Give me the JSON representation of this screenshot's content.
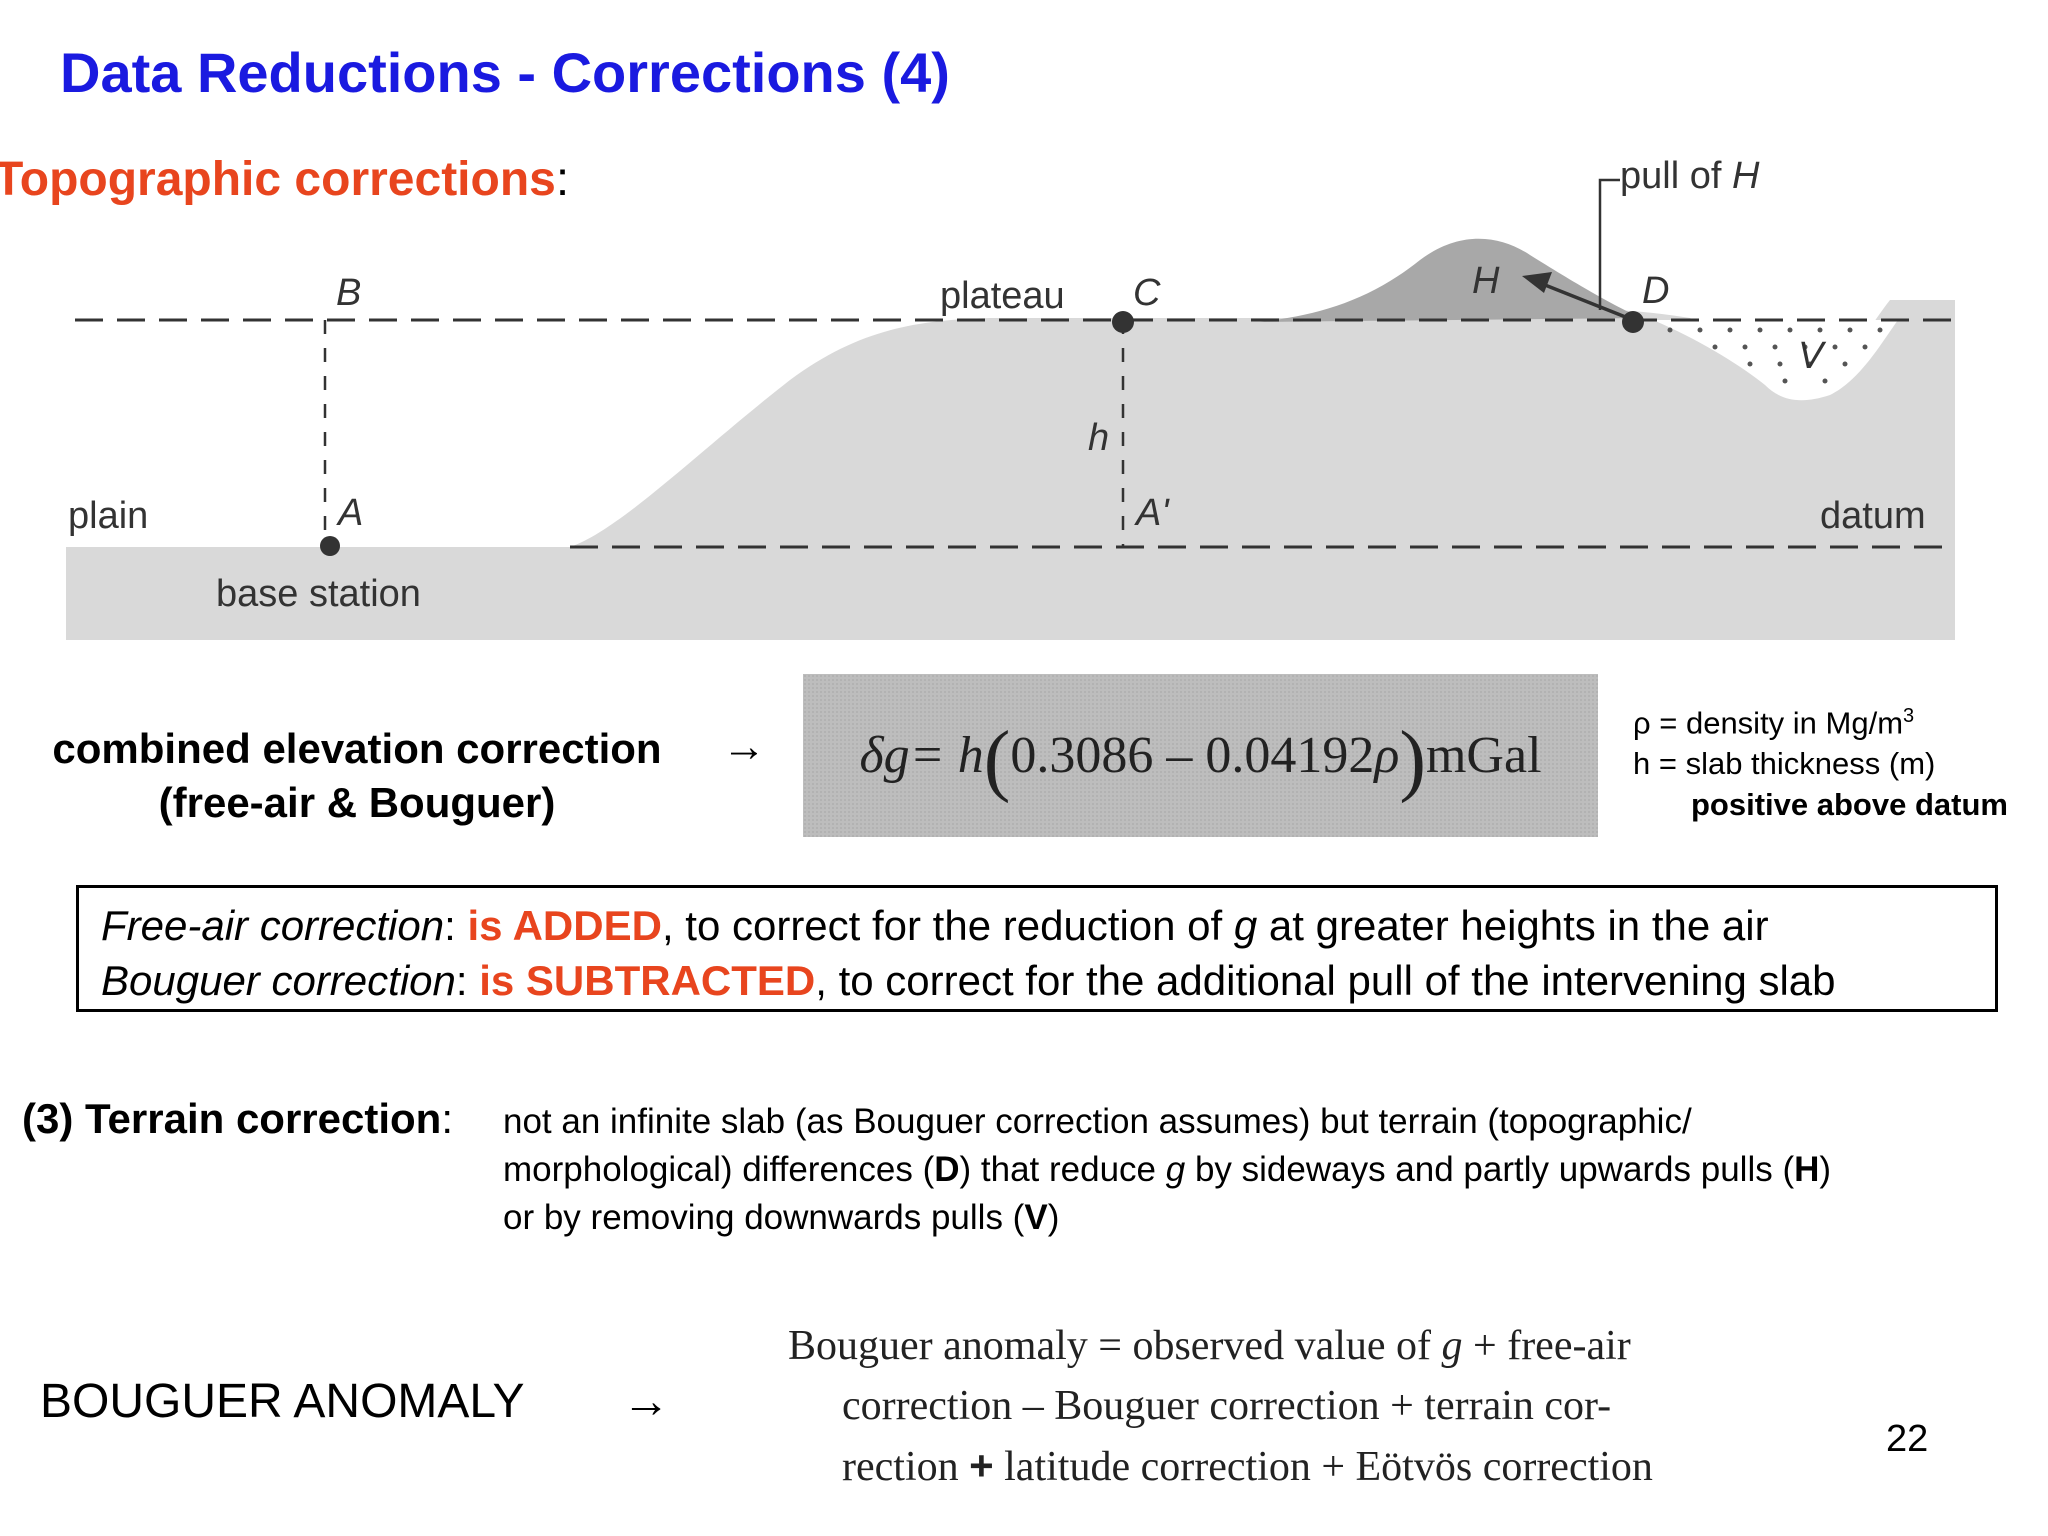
{
  "title": "Data Reductions - Corrections (4)",
  "section_heading": "Topographic corrections",
  "section_heading_colon": ":",
  "diagram": {
    "labels": {
      "B": "B",
      "plateau": "plateau",
      "C": "C",
      "H": "H",
      "D": "D",
      "V": "V",
      "h": "h",
      "A": "A",
      "A_prime": "A'",
      "plain": "plain",
      "base_station": "base station",
      "datum": "datum",
      "pull_of": "pull of ",
      "pull_of_H": "H"
    },
    "colors": {
      "terrain": "#d9d9d9",
      "hill": "#a8a8a8",
      "ink": "#333333"
    }
  },
  "combined": {
    "line1": "combined elevation correction",
    "line2": "(free-air & Bouguer)",
    "arrow": "→"
  },
  "formula": {
    "delta_g": "δg",
    "equals_h": " = h",
    "open": "(",
    "numbers": "0.3086 – 0.04192 ",
    "rho": "ρ",
    "close": ")",
    "unit": " mGal"
  },
  "legend": {
    "line1": "ρ = density in Mg/m",
    "line1_sup": "3",
    "line2": "h = slab thickness (m)",
    "line3": "positive above datum"
  },
  "corrections_box": {
    "free_air_label": "Free-air correction",
    "free_air_sep": ": ",
    "free_air_verb": "is ADDED",
    "free_air_rest_a": ", to correct for the reduction of ",
    "free_air_g": "g",
    "free_air_rest_b": " at greater heights in the air",
    "bouguer_label": "Bouguer correction",
    "bouguer_sep": ": ",
    "bouguer_verb": "is SUBTRACTED",
    "bouguer_rest": ", to correct for the additional pull of the intervening slab"
  },
  "terrain": {
    "heading": "(3) Terrain correction",
    "colon": ":",
    "line1": "not an infinite slab (as Bouguer correction assumes) but terrain (topographic/",
    "line2_a": "morphological) differences (",
    "line2_D": "D",
    "line2_b": ") that reduce ",
    "line2_g": "g",
    "line2_c": " by sideways and partly upwards pulls (",
    "line2_H": "H",
    "line2_d": ")",
    "line3_a": "or by removing downwards pulls (",
    "line3_V": "V",
    "line3_b": ")"
  },
  "bouguer": {
    "label": "BOUGUER ANOMALY",
    "arrow": "→",
    "line1_a": "Bouguer anomaly = observed value of ",
    "line1_g": "g",
    "line1_b": " + free-air",
    "line2": "correction – Bouguer correction + terrain cor-",
    "line3_a": "rection ",
    "line3_plus": "+",
    "line3_b": " latitude correction + Eötvös correction"
  },
  "page_number": "22"
}
